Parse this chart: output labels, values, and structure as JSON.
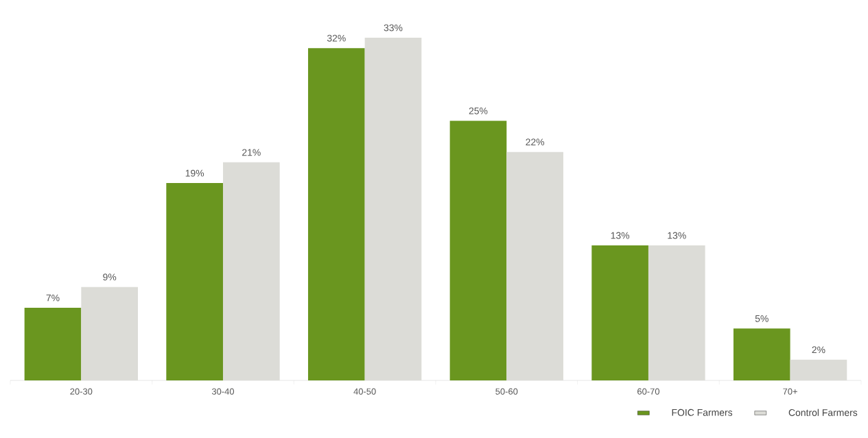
{
  "chart_data": {
    "type": "bar",
    "categories": [
      "20-30",
      "30-40",
      "40-50",
      "50-60",
      "60-70",
      "70+"
    ],
    "series": [
      {
        "name": "FOIC Farmers",
        "color": "#6a961f",
        "values": [
          7,
          19,
          32,
          25,
          13,
          5
        ],
        "value_labels": [
          "7%",
          "19%",
          "32%",
          "25%",
          "13%",
          "5%"
        ]
      },
      {
        "name": "Control Farmers",
        "color": "#dcdcd7",
        "values": [
          9,
          21,
          33,
          22,
          13,
          2
        ],
        "value_labels": [
          "9%",
          "21%",
          "33%",
          "22%",
          "13%",
          "2%"
        ]
      }
    ],
    "legend": "bottom right",
    "tick_labels": "x"
  }
}
